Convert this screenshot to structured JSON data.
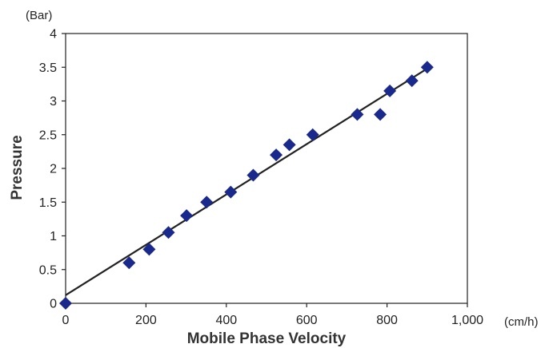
{
  "chart_data": {
    "type": "scatter",
    "title": "",
    "xlabel": "Mobile Phase Velocity",
    "ylabel": "Pressure",
    "x_unit": "(cm/h)",
    "y_unit": "(Bar)",
    "xlim": [
      0,
      1000
    ],
    "ylim": [
      0,
      4
    ],
    "x_ticks": [
      0,
      200,
      400,
      600,
      800,
      1000
    ],
    "x_tick_labels": [
      "0",
      "200",
      "400",
      "600",
      "800",
      "1,000"
    ],
    "y_ticks": [
      0,
      0.5,
      1,
      1.5,
      2,
      2.5,
      3,
      3.5,
      4
    ],
    "y_tick_labels": [
      "0",
      "0.5",
      "1",
      "1.5",
      "2",
      "2.5",
      "3",
      "3.5",
      "4"
    ],
    "grid": false,
    "marker": "diamond",
    "marker_color": "#1a2a8c",
    "series": [
      {
        "points": [
          {
            "x": 0,
            "y": 0
          },
          {
            "x": 158,
            "y": 0.6
          },
          {
            "x": 208,
            "y": 0.8
          },
          {
            "x": 256,
            "y": 1.05
          },
          {
            "x": 301,
            "y": 1.3
          },
          {
            "x": 351,
            "y": 1.5
          },
          {
            "x": 411,
            "y": 1.65
          },
          {
            "x": 467,
            "y": 1.9
          },
          {
            "x": 524,
            "y": 2.2
          },
          {
            "x": 557,
            "y": 2.35
          },
          {
            "x": 615,
            "y": 2.5
          },
          {
            "x": 726,
            "y": 2.8
          },
          {
            "x": 783,
            "y": 2.8
          },
          {
            "x": 807,
            "y": 3.15
          },
          {
            "x": 862,
            "y": 3.3
          },
          {
            "x": 900,
            "y": 3.5
          }
        ]
      }
    ],
    "trendline": {
      "color": "#222222",
      "from": {
        "x": 0,
        "y": 0.12
      },
      "to": {
        "x": 900,
        "y": 3.48
      }
    }
  }
}
